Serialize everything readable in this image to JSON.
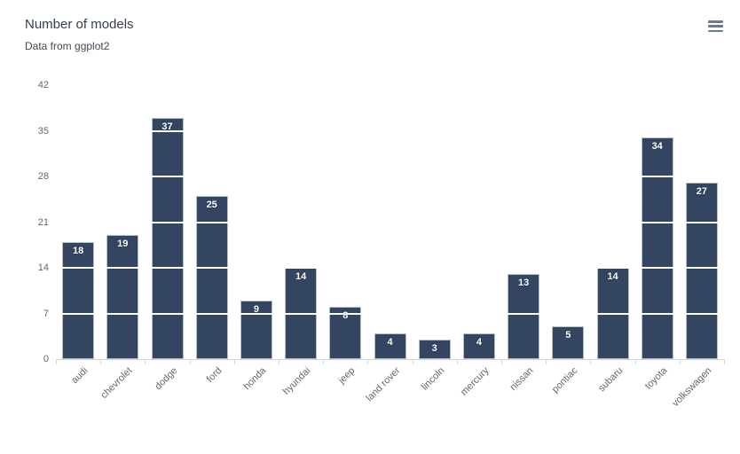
{
  "header": {
    "title": "Number of models",
    "subtitle": "Data from ggplot2"
  },
  "toolbar": {
    "menu_icon": "hamburger-menu-icon"
  },
  "colors": {
    "bar": "#344562",
    "bar_border": "rgba(255,255,255,0.65)",
    "grid_line": "#ffffff",
    "axis_line": "#ccd6eb",
    "axis_label": "#666666",
    "value_label": "#ffffff",
    "title_text": "#35404d",
    "subtitle_text": "#3f4a54",
    "menu_icon": "#6b7a8d"
  },
  "chart_data": {
    "type": "bar",
    "title": "Number of models",
    "subtitle": "Data from ggplot2",
    "categories": [
      "audi",
      "chevrolet",
      "dodge",
      "ford",
      "honda",
      "hyundai",
      "jeep",
      "land rover",
      "lincoln",
      "mercury",
      "nissan",
      "pontiac",
      "subaru",
      "toyota",
      "volkswagen"
    ],
    "values": [
      18,
      19,
      37,
      25,
      9,
      14,
      8,
      4,
      3,
      4,
      13,
      5,
      14,
      34,
      27
    ],
    "xlabel": "",
    "ylabel": "",
    "ylim": [
      0,
      42
    ],
    "yticks": [
      0,
      7,
      14,
      21,
      28,
      35,
      42
    ],
    "grid": "horizontal-white-over-bars",
    "legend": "none",
    "value_labels": "inside-top-white-bold",
    "x_label_rotation": -45
  }
}
